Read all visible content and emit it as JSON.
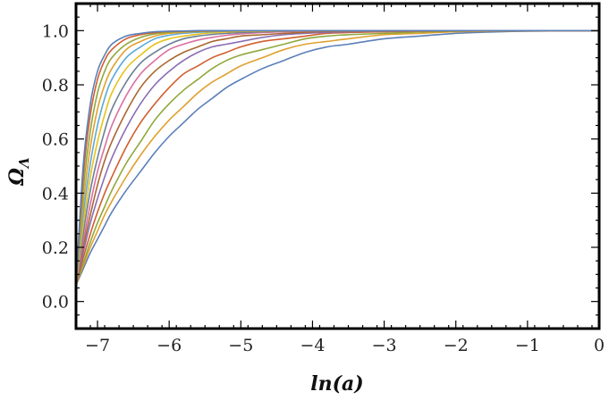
{
  "chart_data": {
    "type": "line",
    "title": "",
    "xlabel": "ln(a)",
    "ylabel": "ΩΛ",
    "ylabel_main": "Ω",
    "ylabel_sub": "Λ",
    "xlim": [
      -7.3,
      0
    ],
    "ylim": [
      -0.1,
      1.1
    ],
    "x_ticks": [
      -7,
      -6,
      -5,
      -4,
      -3,
      -2,
      -1,
      0
    ],
    "x_tick_labels": [
      "−7",
      "−6",
      "−5",
      "−4",
      "−3",
      "−2",
      "−1",
      "0"
    ],
    "y_ticks": [
      0.0,
      0.2,
      0.4,
      0.6,
      0.8,
      1.0
    ],
    "y_tick_labels": [
      "0.0",
      "0.2",
      "0.4",
      "0.6",
      "0.8",
      "1.0"
    ],
    "grid": false,
    "legend": "none",
    "x": [
      -7.3,
      -7.2,
      -7.1,
      -7.0,
      -6.9,
      -6.8,
      -6.6,
      -6.4,
      -6.2,
      -6.0,
      -5.8,
      -5.6,
      -5.4,
      -5.2,
      -5.0,
      -4.7,
      -4.4,
      -4.1,
      -3.8,
      -3.5,
      -3.0,
      -2.5,
      -2.0,
      -1.5,
      -1.0,
      0.0
    ],
    "series": [
      {
        "color": "#5b7fb9",
        "values": [
          0.06,
          0.12,
          0.18,
          0.23,
          0.28,
          0.33,
          0.41,
          0.48,
          0.55,
          0.61,
          0.66,
          0.71,
          0.75,
          0.79,
          0.82,
          0.86,
          0.89,
          0.92,
          0.94,
          0.95,
          0.97,
          0.98,
          0.99,
          0.995,
          0.998,
          1.0
        ]
      },
      {
        "color": "#e0a030",
        "values": [
          0.06,
          0.13,
          0.2,
          0.26,
          0.32,
          0.37,
          0.46,
          0.54,
          0.61,
          0.67,
          0.72,
          0.77,
          0.81,
          0.84,
          0.87,
          0.9,
          0.93,
          0.95,
          0.96,
          0.97,
          0.985,
          0.99,
          0.996,
          0.998,
          0.999,
          1.0
        ]
      },
      {
        "color": "#8fa83a",
        "values": [
          0.06,
          0.14,
          0.22,
          0.29,
          0.35,
          0.41,
          0.51,
          0.59,
          0.67,
          0.73,
          0.78,
          0.82,
          0.86,
          0.89,
          0.91,
          0.93,
          0.95,
          0.97,
          0.98,
          0.985,
          0.99,
          0.995,
          0.998,
          0.999,
          1.0,
          1.0
        ]
      },
      {
        "color": "#d05f2f",
        "values": [
          0.06,
          0.16,
          0.25,
          0.33,
          0.4,
          0.46,
          0.57,
          0.66,
          0.73,
          0.79,
          0.84,
          0.87,
          0.9,
          0.92,
          0.94,
          0.96,
          0.97,
          0.98,
          0.99,
          0.993,
          0.996,
          0.998,
          0.999,
          1.0,
          1.0,
          1.0
        ]
      },
      {
        "color": "#8a6eb3",
        "values": [
          0.06,
          0.18,
          0.29,
          0.38,
          0.46,
          0.53,
          0.64,
          0.73,
          0.8,
          0.85,
          0.89,
          0.92,
          0.94,
          0.95,
          0.96,
          0.975,
          0.985,
          0.99,
          0.994,
          0.996,
          0.998,
          0.999,
          1.0,
          1.0,
          1.0,
          1.0
        ]
      },
      {
        "color": "#a9672f",
        "values": [
          0.06,
          0.2,
          0.32,
          0.43,
          0.52,
          0.59,
          0.7,
          0.79,
          0.85,
          0.89,
          0.92,
          0.94,
          0.96,
          0.97,
          0.98,
          0.985,
          0.99,
          0.994,
          0.997,
          0.998,
          0.999,
          1.0,
          1.0,
          1.0,
          1.0,
          1.0
        ]
      },
      {
        "color": "#d96fa1",
        "values": [
          0.06,
          0.22,
          0.36,
          0.48,
          0.57,
          0.65,
          0.76,
          0.84,
          0.89,
          0.93,
          0.95,
          0.965,
          0.975,
          0.983,
          0.988,
          0.993,
          0.996,
          0.998,
          0.999,
          1.0,
          1.0,
          1.0,
          1.0,
          1.0,
          1.0,
          1.0
        ]
      },
      {
        "color": "#6a7f95",
        "values": [
          0.06,
          0.25,
          0.41,
          0.53,
          0.63,
          0.71,
          0.81,
          0.88,
          0.92,
          0.95,
          0.97,
          0.98,
          0.986,
          0.99,
          0.993,
          0.996,
          0.998,
          0.999,
          1.0,
          1.0,
          1.0,
          1.0,
          1.0,
          1.0,
          1.0,
          1.0
        ]
      },
      {
        "color": "#e8c21a",
        "values": [
          0.06,
          0.28,
          0.46,
          0.59,
          0.69,
          0.77,
          0.86,
          0.91,
          0.95,
          0.97,
          0.98,
          0.987,
          0.992,
          0.995,
          0.997,
          0.998,
          0.999,
          1.0,
          1.0,
          1.0,
          1.0,
          1.0,
          1.0,
          1.0,
          1.0,
          1.0
        ]
      },
      {
        "color": "#5aa9d6",
        "values": [
          0.06,
          0.32,
          0.51,
          0.65,
          0.75,
          0.82,
          0.9,
          0.94,
          0.97,
          0.983,
          0.99,
          0.994,
          0.996,
          0.998,
          0.999,
          1.0,
          1.0,
          1.0,
          1.0,
          1.0,
          1.0,
          1.0,
          1.0,
          1.0,
          1.0,
          1.0
        ]
      },
      {
        "color": "#e0a030",
        "values": [
          0.06,
          0.36,
          0.57,
          0.71,
          0.8,
          0.86,
          0.93,
          0.96,
          0.98,
          0.99,
          0.994,
          0.997,
          0.998,
          0.999,
          1.0,
          1.0,
          1.0,
          1.0,
          1.0,
          1.0,
          1.0,
          1.0,
          1.0,
          1.0,
          1.0,
          1.0
        ]
      },
      {
        "color": "#8fa83a",
        "values": [
          0.06,
          0.41,
          0.63,
          0.77,
          0.85,
          0.9,
          0.95,
          0.975,
          0.988,
          0.994,
          0.997,
          0.998,
          0.999,
          1.0,
          1.0,
          1.0,
          1.0,
          1.0,
          1.0,
          1.0,
          1.0,
          1.0,
          1.0,
          1.0,
          1.0,
          1.0
        ]
      },
      {
        "color": "#d05f2f",
        "values": [
          0.06,
          0.46,
          0.69,
          0.82,
          0.89,
          0.93,
          0.97,
          0.985,
          0.993,
          0.997,
          0.998,
          0.999,
          1.0,
          1.0,
          1.0,
          1.0,
          1.0,
          1.0,
          1.0,
          1.0,
          1.0,
          1.0,
          1.0,
          1.0,
          1.0,
          1.0
        ]
      },
      {
        "color": "#5b7fb9",
        "values": [
          0.06,
          0.5,
          0.73,
          0.85,
          0.91,
          0.95,
          0.98,
          0.99,
          0.996,
          0.998,
          0.999,
          1.0,
          1.0,
          1.0,
          1.0,
          1.0,
          1.0,
          1.0,
          1.0,
          1.0,
          1.0,
          1.0,
          1.0,
          1.0,
          1.0,
          1.0
        ]
      }
    ]
  }
}
